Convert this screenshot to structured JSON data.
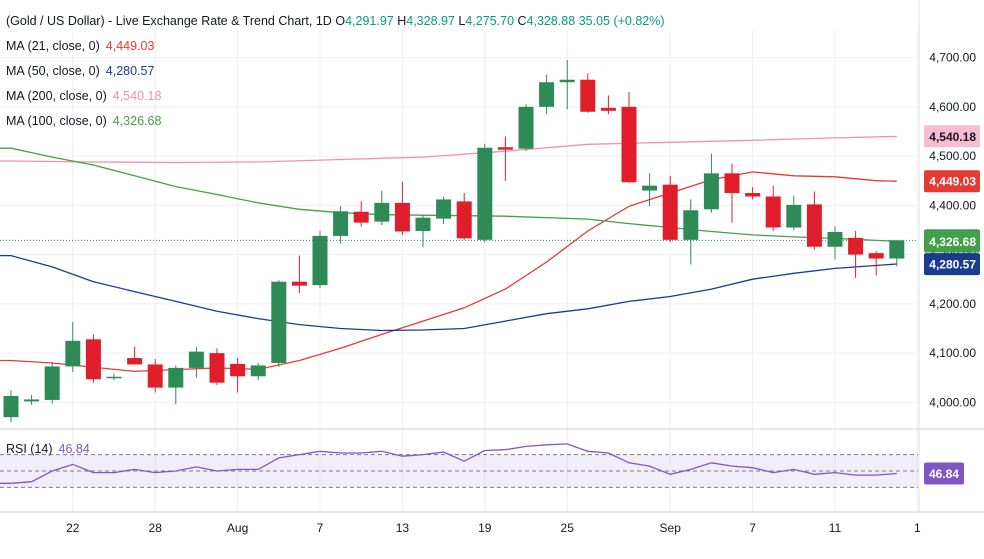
{
  "header": {
    "symbol": "(Gold / US Dollar) - Live Exchange Rate & Trend Chart, 1D",
    "open_label": "O",
    "open": "4,291.97",
    "high_label": "H",
    "high": "4,328.97",
    "low_label": "L",
    "low": "4,275.70",
    "close_label": "C",
    "close": "4,328.88",
    "change": "35.05 (+0.82%)"
  },
  "legend": [
    {
      "label": "MA (21, close, 0)",
      "value": "4,449.03",
      "color": "#e53935"
    },
    {
      "label": "MA (50, close, 0)",
      "value": "4,280.57",
      "color": "#1a3c8f"
    },
    {
      "label": "MA (200, close, 0)",
      "value": "4,540.18",
      "color": "#f48fb1"
    },
    {
      "label": "MA (100, close, 0)",
      "value": "4,326.68",
      "color": "#43a047"
    }
  ],
  "rsi_legend": {
    "label": "RSI (14)",
    "value": "46.84"
  },
  "colors": {
    "up": "#2e8b57",
    "down": "#e01e2b",
    "rsi": "#7e57c2",
    "grid": "#eef0f3",
    "axis_text": "#131722"
  },
  "chart_data": {
    "type": "candlestick",
    "y_ticks": [
      "4,000.00",
      "4,100.00",
      "4,200.00",
      "4,300.00",
      "4,400.00",
      "4,500.00",
      "4,600.00",
      "4,700.00"
    ],
    "y_tick_values": [
      4000,
      4100,
      4200,
      4300,
      4400,
      4500,
      4600,
      4700
    ],
    "ylim": [
      3948,
      4756
    ],
    "x_labels": [
      {
        "label": "22",
        "index": 3
      },
      {
        "label": "28",
        "index": 7
      },
      {
        "label": "Aug",
        "index": 11
      },
      {
        "label": "7",
        "index": 15
      },
      {
        "label": "13",
        "index": 19
      },
      {
        "label": "19",
        "index": 23
      },
      {
        "label": "25",
        "index": 27
      },
      {
        "label": "Sep",
        "index": 32
      },
      {
        "label": "7",
        "index": 36
      },
      {
        "label": "11",
        "index": 40
      },
      {
        "label": "1",
        "index": 44
      }
    ],
    "candles": [
      {
        "o": 3970,
        "h": 4025,
        "l": 3960,
        "c": 4013
      },
      {
        "o": 4002,
        "h": 4015,
        "l": 3995,
        "c": 4006
      },
      {
        "o": 4005,
        "h": 4082,
        "l": 3998,
        "c": 4073
      },
      {
        "o": 4073,
        "h": 4163,
        "l": 4062,
        "c": 4125
      },
      {
        "o": 4128,
        "h": 4138,
        "l": 4040,
        "c": 4047
      },
      {
        "o": 4050,
        "h": 4058,
        "l": 4045,
        "c": 4052
      },
      {
        "o": 4090,
        "h": 4113,
        "l": 4080,
        "c": 4077
      },
      {
        "o": 4077,
        "h": 4088,
        "l": 4020,
        "c": 4030
      },
      {
        "o": 4030,
        "h": 4075,
        "l": 3996,
        "c": 4070
      },
      {
        "o": 4070,
        "h": 4112,
        "l": 4050,
        "c": 4103
      },
      {
        "o": 4100,
        "h": 4110,
        "l": 4035,
        "c": 4040
      },
      {
        "o": 4078,
        "h": 4090,
        "l": 4020,
        "c": 4053
      },
      {
        "o": 4053,
        "h": 4080,
        "l": 4045,
        "c": 4075
      },
      {
        "o": 4080,
        "h": 4248,
        "l": 4072,
        "c": 4245
      },
      {
        "o": 4245,
        "h": 4298,
        "l": 4222,
        "c": 4237
      },
      {
        "o": 4238,
        "h": 4348,
        "l": 4232,
        "c": 4338
      },
      {
        "o": 4338,
        "h": 4398,
        "l": 4322,
        "c": 4388
      },
      {
        "o": 4387,
        "h": 4408,
        "l": 4357,
        "c": 4365
      },
      {
        "o": 4367,
        "h": 4430,
        "l": 4360,
        "c": 4405
      },
      {
        "o": 4405,
        "h": 4448,
        "l": 4340,
        "c": 4347
      },
      {
        "o": 4348,
        "h": 4380,
        "l": 4315,
        "c": 4375
      },
      {
        "o": 4373,
        "h": 4418,
        "l": 4362,
        "c": 4412
      },
      {
        "o": 4408,
        "h": 4425,
        "l": 4330,
        "c": 4333
      },
      {
        "o": 4330,
        "h": 4525,
        "l": 4325,
        "c": 4517
      },
      {
        "o": 4518,
        "h": 4540,
        "l": 4450,
        "c": 4513
      },
      {
        "o": 4515,
        "h": 4605,
        "l": 4510,
        "c": 4600
      },
      {
        "o": 4600,
        "h": 4665,
        "l": 4585,
        "c": 4650
      },
      {
        "o": 4650,
        "h": 4695,
        "l": 4595,
        "c": 4655
      },
      {
        "o": 4655,
        "h": 4668,
        "l": 4588,
        "c": 4590
      },
      {
        "o": 4598,
        "h": 4623,
        "l": 4585,
        "c": 4592
      },
      {
        "o": 4600,
        "h": 4630,
        "l": 4445,
        "c": 4447
      },
      {
        "o": 4430,
        "h": 4465,
        "l": 4398,
        "c": 4440
      },
      {
        "o": 4442,
        "h": 4460,
        "l": 4325,
        "c": 4330
      },
      {
        "o": 4330,
        "h": 4412,
        "l": 4280,
        "c": 4390
      },
      {
        "o": 4392,
        "h": 4505,
        "l": 4385,
        "c": 4465
      },
      {
        "o": 4465,
        "h": 4485,
        "l": 4365,
        "c": 4425
      },
      {
        "o": 4425,
        "h": 4437,
        "l": 4412,
        "c": 4418
      },
      {
        "o": 4418,
        "h": 4440,
        "l": 4348,
        "c": 4355
      },
      {
        "o": 4355,
        "h": 4420,
        "l": 4350,
        "c": 4401
      },
      {
        "o": 4402,
        "h": 4428,
        "l": 4310,
        "c": 4316
      },
      {
        "o": 4316,
        "h": 4358,
        "l": 4290,
        "c": 4346
      },
      {
        "o": 4334,
        "h": 4348,
        "l": 4253,
        "c": 4300
      },
      {
        "o": 4303,
        "h": 4307,
        "l": 4258,
        "c": 4292
      },
      {
        "o": 4292,
        "h": 4329,
        "l": 4276,
        "c": 4329
      }
    ],
    "ma_series": [
      {
        "name": "MA (21, close, 0)",
        "color": "#e53935",
        "points": [
          [
            0,
            4085
          ],
          [
            2,
            4080
          ],
          [
            6,
            4063
          ],
          [
            10,
            4070
          ],
          [
            12,
            4067
          ],
          [
            14,
            4085
          ],
          [
            16,
            4110
          ],
          [
            18,
            4138
          ],
          [
            20,
            4165
          ],
          [
            22,
            4192
          ],
          [
            24,
            4230
          ],
          [
            26,
            4285
          ],
          [
            28,
            4348
          ],
          [
            30,
            4398
          ],
          [
            32,
            4425
          ],
          [
            34,
            4452
          ],
          [
            36,
            4468
          ],
          [
            38,
            4460
          ],
          [
            40,
            4458
          ],
          [
            42,
            4450
          ],
          [
            43,
            4449
          ]
        ]
      },
      {
        "name": "MA (50, close, 0)",
        "color": "#1a3c8f",
        "points": [
          [
            0,
            4298
          ],
          [
            2,
            4275
          ],
          [
            4,
            4245
          ],
          [
            6,
            4225
          ],
          [
            8,
            4205
          ],
          [
            10,
            4185
          ],
          [
            12,
            4170
          ],
          [
            14,
            4158
          ],
          [
            16,
            4150
          ],
          [
            18,
            4146
          ],
          [
            20,
            4147
          ],
          [
            22,
            4150
          ],
          [
            24,
            4165
          ],
          [
            26,
            4180
          ],
          [
            28,
            4190
          ],
          [
            30,
            4205
          ],
          [
            32,
            4215
          ],
          [
            34,
            4230
          ],
          [
            36,
            4250
          ],
          [
            38,
            4262
          ],
          [
            40,
            4272
          ],
          [
            43,
            4281
          ]
        ]
      },
      {
        "name": "MA (200, close, 0)",
        "color": "#f48fb1",
        "points": [
          [
            0,
            4490
          ],
          [
            4,
            4488
          ],
          [
            8,
            4487
          ],
          [
            12,
            4488
          ],
          [
            16,
            4493
          ],
          [
            20,
            4498
          ],
          [
            24,
            4510
          ],
          [
            28,
            4524
          ],
          [
            32,
            4528
          ],
          [
            36,
            4532
          ],
          [
            40,
            4537
          ],
          [
            43,
            4540
          ]
        ]
      },
      {
        "name": "MA (100, close, 0)",
        "color": "#43a047",
        "points": [
          [
            0,
            4516
          ],
          [
            2,
            4498
          ],
          [
            4,
            4482
          ],
          [
            6,
            4460
          ],
          [
            8,
            4438
          ],
          [
            10,
            4422
          ],
          [
            12,
            4405
          ],
          [
            14,
            4392
          ],
          [
            16,
            4385
          ],
          [
            18,
            4381
          ],
          [
            20,
            4380
          ],
          [
            24,
            4378
          ],
          [
            28,
            4372
          ],
          [
            30,
            4363
          ],
          [
            32,
            4355
          ],
          [
            34,
            4347
          ],
          [
            36,
            4340
          ],
          [
            38,
            4336
          ],
          [
            40,
            4333
          ],
          [
            43,
            4327
          ]
        ]
      }
    ],
    "price_labels": [
      {
        "text": "4,540.18",
        "value": 4540.18,
        "bg": "#f8bbd0",
        "fg": "#131722"
      },
      {
        "text": "4,449.03",
        "value": 4449.03,
        "bg": "#e53935",
        "fg": "#ffffff"
      },
      {
        "text": "4,328.88",
        "value": 4328.88,
        "bg": "#2e8b57",
        "fg": "#ffffff"
      },
      {
        "text": "4,326.68",
        "value": 4326.68,
        "bg": "#43a047",
        "fg": "#ffffff"
      },
      {
        "text": "4,280.57",
        "value": 4280.57,
        "bg": "#1a3c8f",
        "fg": "#ffffff"
      }
    ],
    "last_close": 4328.88,
    "rsi": {
      "ylim": [
        0,
        100
      ],
      "upper": 70,
      "lower": 30,
      "label": "46.84",
      "values": [
        35,
        37,
        50,
        58,
        48,
        48,
        52,
        48,
        50,
        55,
        50,
        52,
        52,
        66,
        70,
        74,
        72,
        72,
        74,
        68,
        70,
        73,
        62,
        75,
        76,
        80,
        82,
        83,
        74,
        72,
        60,
        56,
        46,
        52,
        60,
        56,
        54,
        48,
        52,
        46,
        48,
        45,
        45,
        47
      ]
    }
  }
}
